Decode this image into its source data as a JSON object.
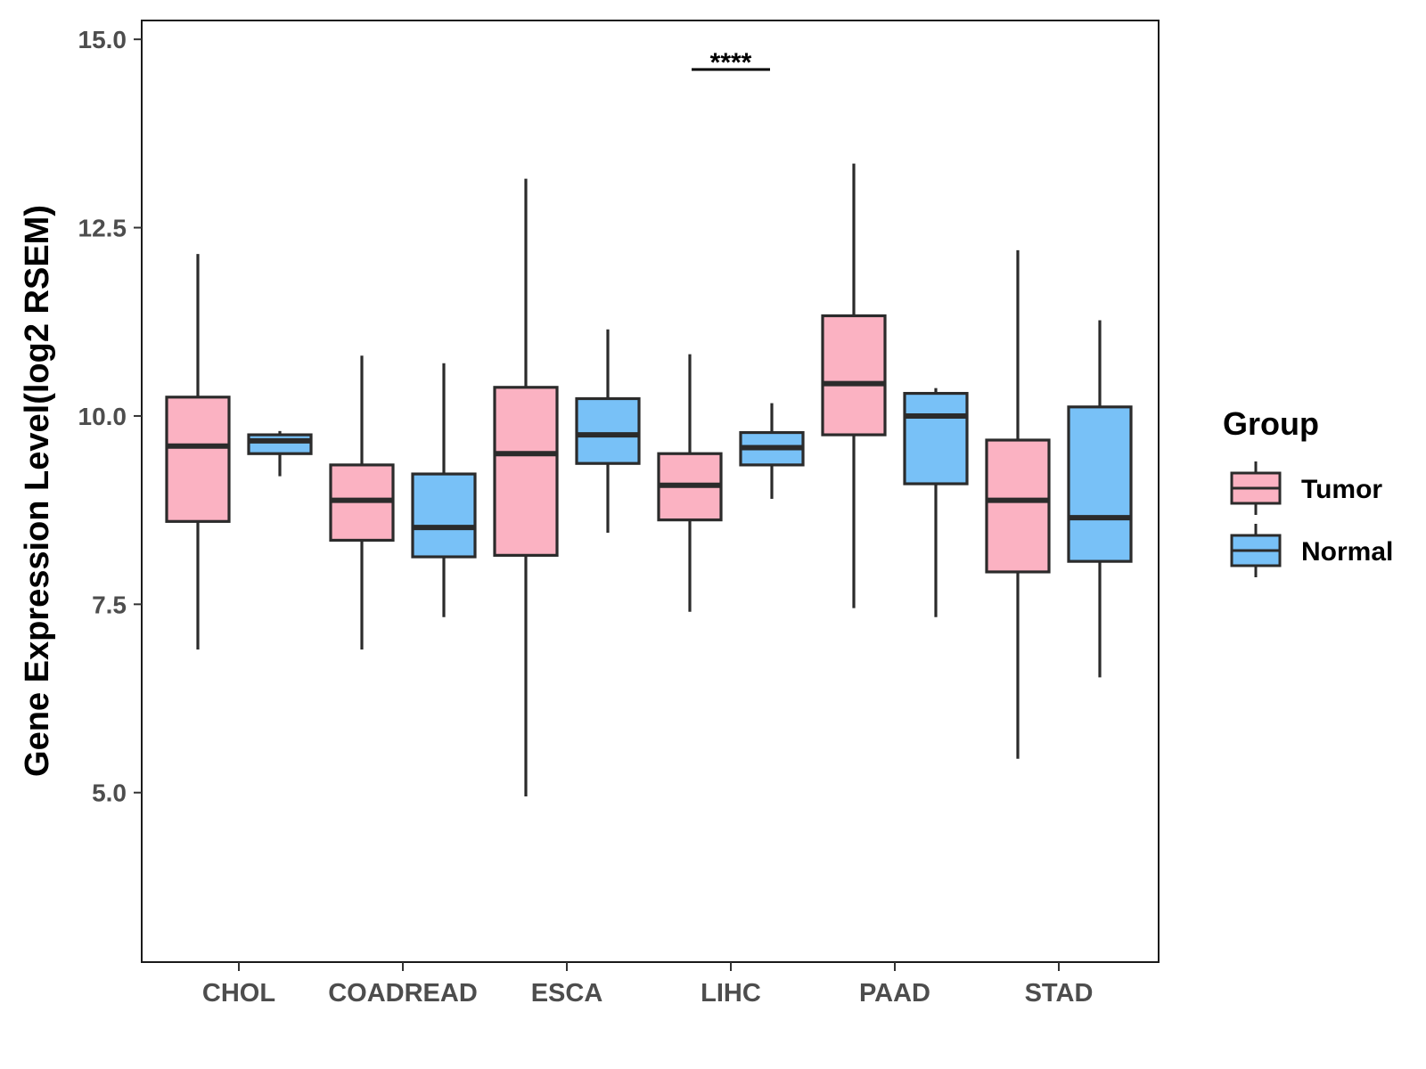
{
  "chart_data": {
    "type": "boxplot",
    "ylabel": "Gene Expression Level(log2 RSEM)",
    "xlabel": "",
    "ylim": [
      2.75,
      15.25
    ],
    "yticks": [
      5.0,
      7.5,
      10.0,
      12.5,
      15.0
    ],
    "ytick_labels": [
      "5.0",
      "7.5",
      "10.0",
      "12.5",
      "15.0"
    ],
    "grid": false,
    "categories": [
      "CHOL",
      "COADREAD",
      "ESCA",
      "LIHC",
      "PAAD",
      "STAD"
    ],
    "legend": {
      "title": "Group",
      "position": "right",
      "entries": [
        {
          "name": "Tumor",
          "color": "#fbb2c2"
        },
        {
          "name": "Normal",
          "color": "#78c1f7"
        }
      ]
    },
    "series": [
      {
        "name": "Tumor",
        "color": "#fbb2c2",
        "boxes": [
          {
            "category": "CHOL",
            "min": 6.9,
            "q1": 8.6,
            "median": 9.6,
            "q3": 10.25,
            "max": 12.15
          },
          {
            "category": "COADREAD",
            "min": 6.9,
            "q1": 8.35,
            "median": 8.88,
            "q3": 9.35,
            "max": 10.8
          },
          {
            "category": "ESCA",
            "min": 4.95,
            "q1": 8.15,
            "median": 9.5,
            "q3": 10.38,
            "max": 13.15
          },
          {
            "category": "LIHC",
            "min": 7.4,
            "q1": 8.62,
            "median": 9.08,
            "q3": 9.5,
            "max": 10.82
          },
          {
            "category": "PAAD",
            "min": 7.45,
            "q1": 9.75,
            "median": 10.43,
            "q3": 11.33,
            "max": 13.35
          },
          {
            "category": "STAD",
            "min": 5.45,
            "q1": 7.93,
            "median": 8.88,
            "q3": 9.68,
            "max": 12.2
          }
        ]
      },
      {
        "name": "Normal",
        "color": "#78c1f7",
        "boxes": [
          {
            "category": "CHOL",
            "min": 9.2,
            "q1": 9.5,
            "median": 9.67,
            "q3": 9.75,
            "max": 9.8
          },
          {
            "category": "COADREAD",
            "min": 7.33,
            "q1": 8.13,
            "median": 8.52,
            "q3": 9.23,
            "max": 10.7
          },
          {
            "category": "ESCA",
            "min": 8.45,
            "q1": 9.37,
            "median": 9.75,
            "q3": 10.23,
            "max": 11.15
          },
          {
            "category": "LIHC",
            "min": 8.9,
            "q1": 9.35,
            "median": 9.58,
            "q3": 9.78,
            "max": 10.17
          },
          {
            "category": "PAAD",
            "min": 7.33,
            "q1": 9.1,
            "median": 10.0,
            "q3": 10.3,
            "max": 10.37
          },
          {
            "category": "STAD",
            "min": 6.53,
            "q1": 8.07,
            "median": 8.65,
            "q3": 10.12,
            "max": 11.27
          }
        ]
      }
    ],
    "annotations": [
      {
        "category": "LIHC",
        "text": "****",
        "y": 14.6
      }
    ]
  }
}
